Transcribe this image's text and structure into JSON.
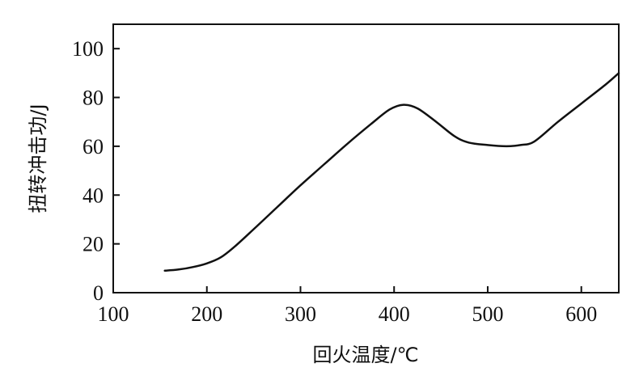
{
  "chart_data": {
    "type": "line",
    "xlabel": "回火温度/℃",
    "ylabel": "扭转冲击功/J",
    "xlim": [
      100,
      640
    ],
    "ylim": [
      0,
      110
    ],
    "x_ticks": [
      100,
      200,
      300,
      400,
      500,
      600
    ],
    "y_ticks": [
      0,
      20,
      40,
      60,
      80,
      100
    ],
    "grid": false,
    "series": [
      {
        "x": [
          155,
          170,
          185,
          200,
          215,
          230,
          250,
          275,
          300,
          325,
          350,
          375,
          395,
          410,
          425,
          445,
          465,
          480,
          500,
          520,
          535,
          550,
          575,
          600,
          625,
          640
        ],
        "y": [
          9,
          9.5,
          10.5,
          12,
          14.5,
          19,
          26,
          35,
          44,
          52.5,
          61,
          69,
          75,
          77,
          75.5,
          70,
          64,
          61.5,
          60.5,
          60,
          60.5,
          62,
          70,
          77.5,
          85,
          90
        ]
      }
    ]
  }
}
